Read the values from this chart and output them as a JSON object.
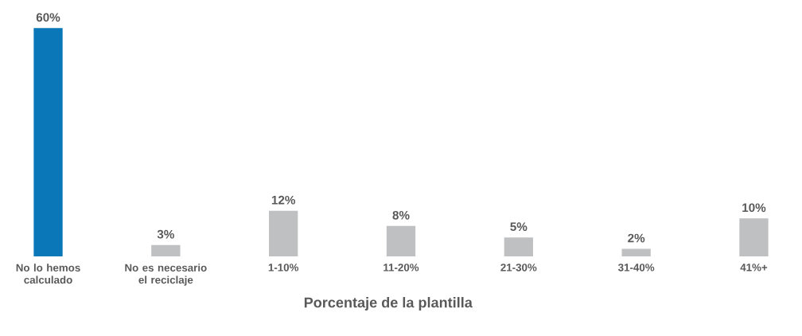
{
  "chart_data": {
    "type": "bar",
    "xlabel": "Porcentaje de la plantilla",
    "categories": [
      "No lo hemos calculado",
      "No es necesario el reciclaje",
      "1-10%",
      "11-20%",
      "21-30%",
      "31-40%",
      "41%+"
    ],
    "values": [
      60,
      3,
      12,
      8,
      5,
      2,
      10
    ],
    "colors": [
      "#0a77b8",
      "#bfc0c2",
      "#bfc0c2",
      "#bfc0c2",
      "#bfc0c2",
      "#bfc0c2",
      "#bfc0c2"
    ],
    "value_labels": [
      "60%",
      "3%",
      "12%",
      "8%",
      "5%",
      "2%",
      "10%"
    ]
  }
}
